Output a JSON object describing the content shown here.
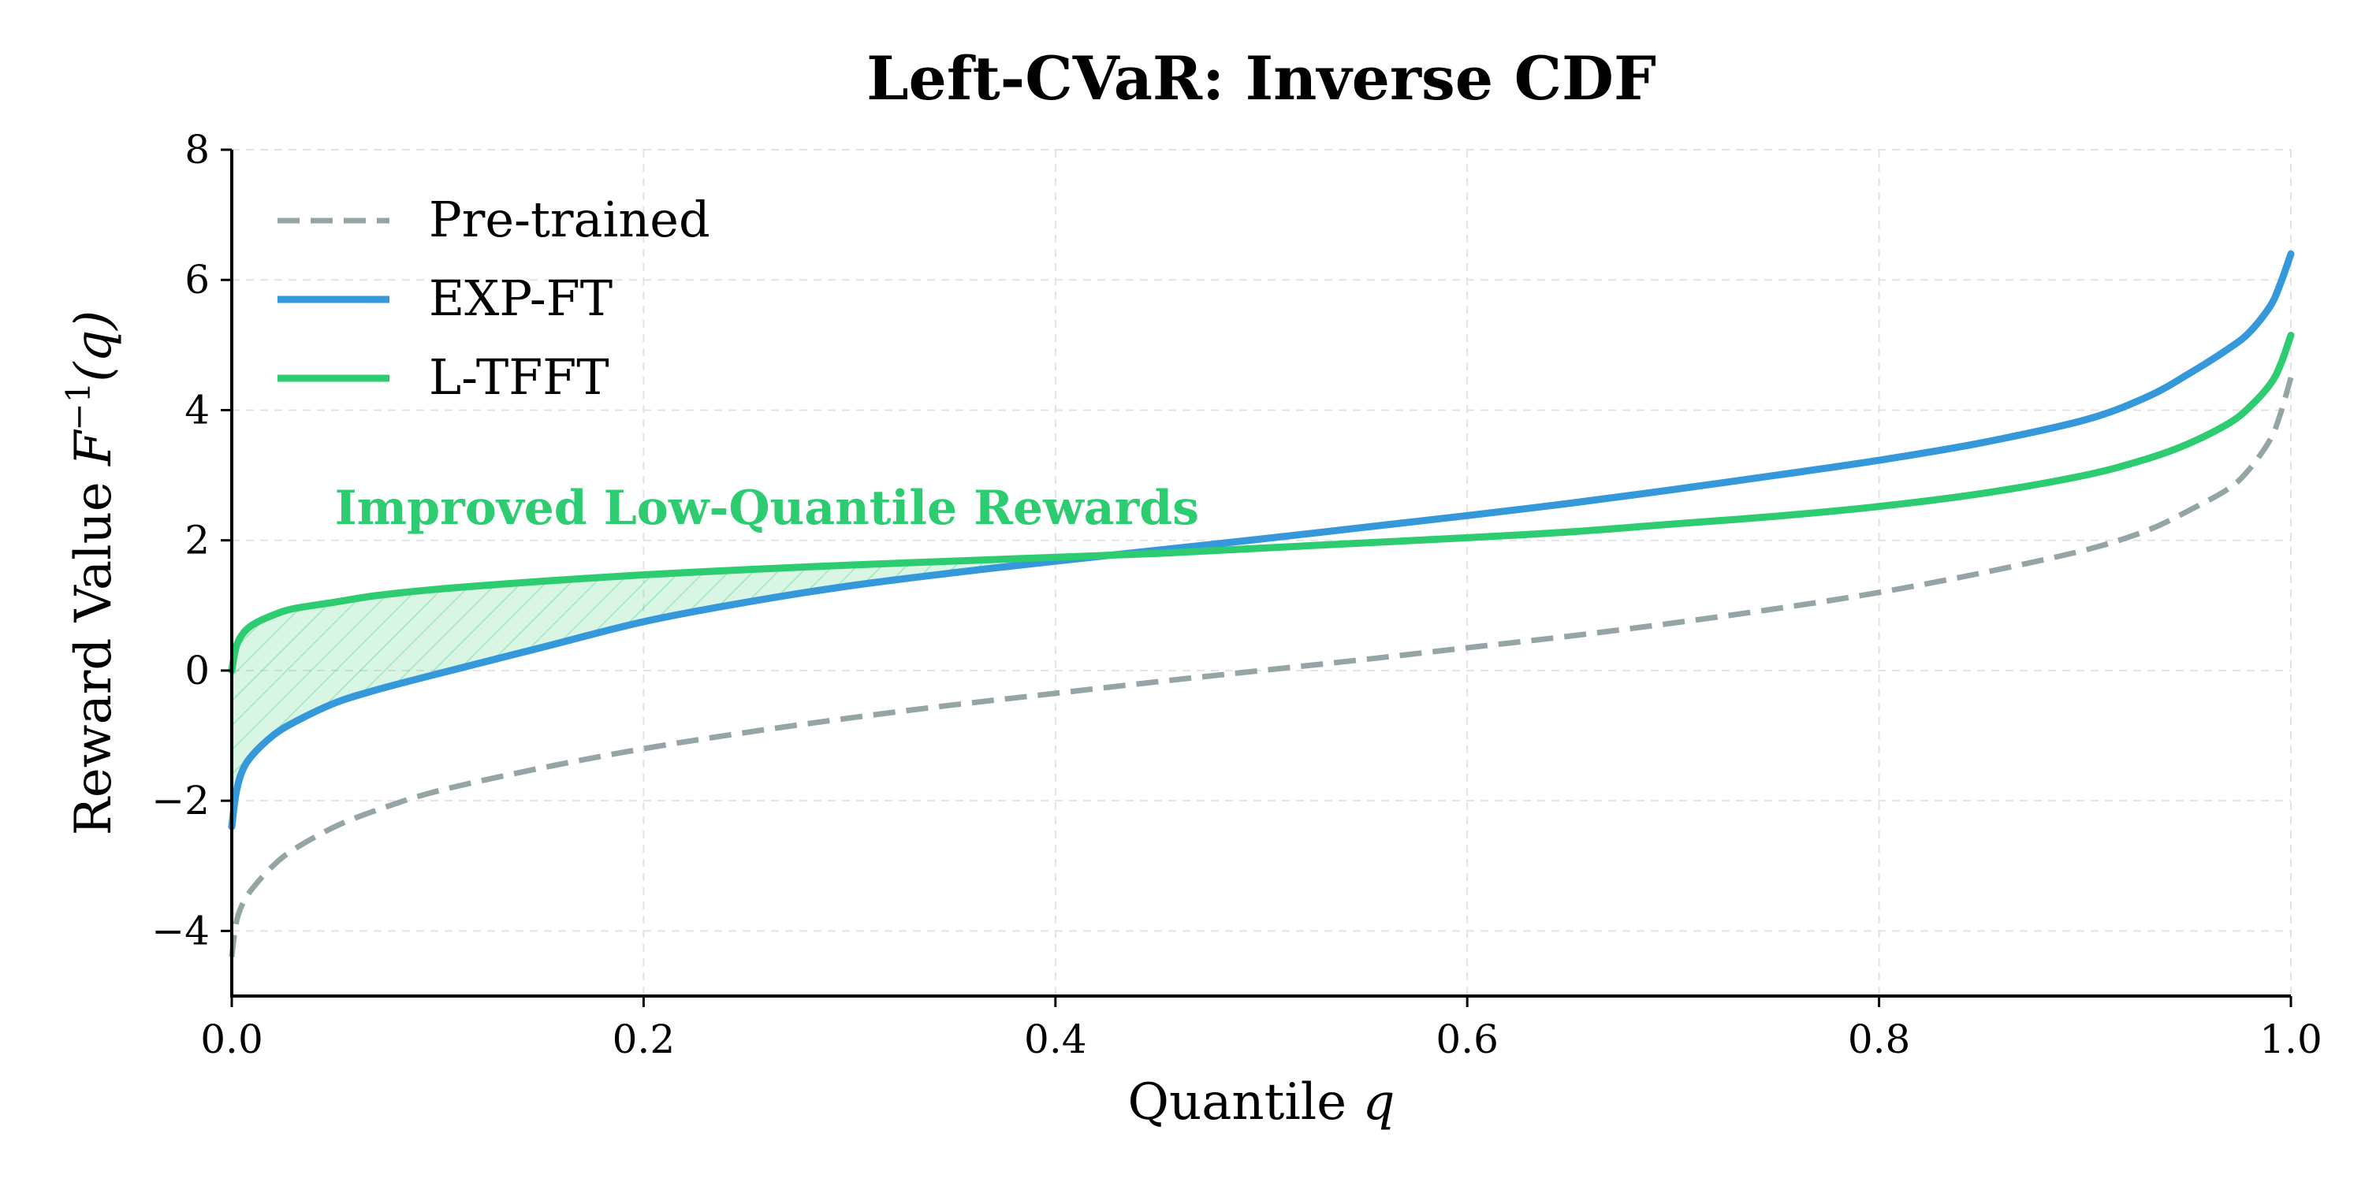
{
  "chart_data": {
    "type": "line",
    "title": "Left-CVaR: Inverse CDF",
    "xlabel": {
      "text": "Quantile ",
      "var": "q"
    },
    "ylabel": {
      "text": "Reward Value ",
      "var": "F",
      "sup": "−1",
      "arg": "(q)"
    },
    "xlim": [
      0.0,
      1.0
    ],
    "ylim": [
      -5,
      8
    ],
    "xticks": [
      "0.0",
      "0.2",
      "0.4",
      "0.6",
      "0.8",
      "1.0"
    ],
    "yticks": [
      "−4",
      "−2",
      "0",
      "2",
      "4",
      "6",
      "8"
    ],
    "grid": true,
    "legend_position": "upper-left",
    "annotation": {
      "text": "Improved Low-Quantile Rewards",
      "x": 0.05,
      "y": 2.25
    },
    "shaded_region": {
      "between": [
        "L-TFFT",
        "EXP-FT"
      ],
      "x_range": [
        0.0,
        0.42
      ]
    },
    "x": [
      0.0,
      0.002,
      0.005,
      0.01,
      0.02,
      0.03,
      0.05,
      0.07,
      0.1,
      0.15,
      0.2,
      0.25,
      0.3,
      0.35,
      0.4,
      0.45,
      0.5,
      0.55,
      0.6,
      0.65,
      0.7,
      0.75,
      0.8,
      0.85,
      0.9,
      0.93,
      0.95,
      0.97,
      0.98,
      0.99,
      0.995,
      1.0
    ],
    "series": [
      {
        "name": "Pre-trained",
        "color": "#95a5a6",
        "style": "dashed",
        "values": [
          -4.4,
          -3.9,
          -3.6,
          -3.35,
          -3.0,
          -2.75,
          -2.4,
          -2.15,
          -1.85,
          -1.5,
          -1.2,
          -0.95,
          -0.73,
          -0.53,
          -0.35,
          -0.17,
          0.0,
          0.17,
          0.35,
          0.53,
          0.73,
          0.95,
          1.2,
          1.5,
          1.85,
          2.15,
          2.45,
          2.8,
          3.1,
          3.55,
          3.95,
          4.5
        ]
      },
      {
        "name": "EXP-FT",
        "color": "#3498db",
        "style": "solid",
        "values": [
          -2.4,
          -1.9,
          -1.55,
          -1.3,
          -1.0,
          -0.8,
          -0.5,
          -0.3,
          -0.05,
          0.35,
          0.75,
          1.05,
          1.3,
          1.5,
          1.68,
          1.85,
          2.02,
          2.2,
          2.38,
          2.57,
          2.78,
          3.0,
          3.23,
          3.5,
          3.85,
          4.2,
          4.55,
          4.95,
          5.2,
          5.6,
          5.95,
          6.4
        ]
      },
      {
        "name": "L-TFFT",
        "color": "#2ecc71",
        "style": "solid",
        "values": [
          0.0,
          0.35,
          0.55,
          0.7,
          0.85,
          0.95,
          1.05,
          1.15,
          1.25,
          1.37,
          1.47,
          1.55,
          1.62,
          1.68,
          1.74,
          1.8,
          1.88,
          1.96,
          2.04,
          2.13,
          2.25,
          2.37,
          2.52,
          2.72,
          3.0,
          3.25,
          3.48,
          3.8,
          4.05,
          4.4,
          4.7,
          5.15
        ]
      }
    ]
  }
}
